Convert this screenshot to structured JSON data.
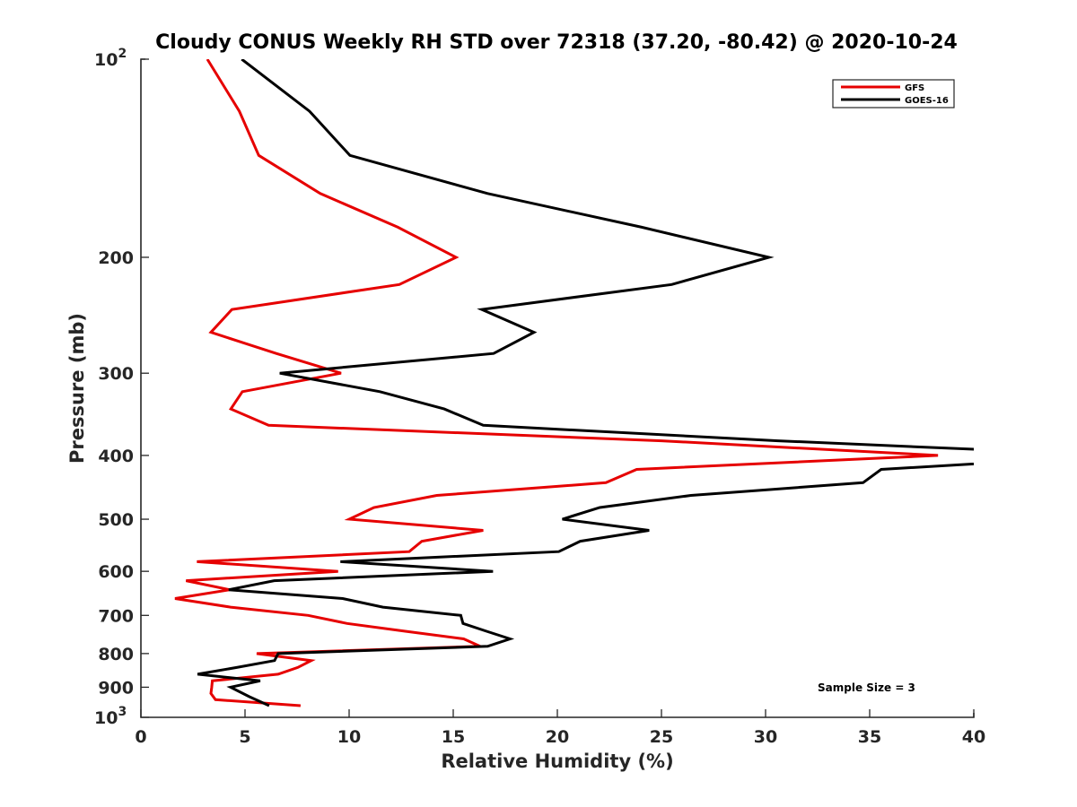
{
  "chart_data": {
    "type": "line",
    "title": "Cloudy CONUS Weekly RH STD over 72318 (37.20, -80.42) @ 2020-10-24",
    "xlabel": "Relative Humidity (%)",
    "ylabel": "Pressure (mb)",
    "xlim": [
      0,
      40
    ],
    "ylim": [
      100,
      1000
    ],
    "yscale": "log",
    "yaxis_reversed": true,
    "grid": false,
    "x_ticks": [
      "0",
      "5",
      "10",
      "15",
      "20",
      "25",
      "30",
      "35",
      "40"
    ],
    "y_ticks": [
      {
        "value": 100,
        "label": "10",
        "sup": "2"
      },
      {
        "value": 200,
        "label": "200",
        "sup": ""
      },
      {
        "value": 300,
        "label": "300",
        "sup": ""
      },
      {
        "value": 400,
        "label": "400",
        "sup": ""
      },
      {
        "value": 500,
        "label": "500",
        "sup": ""
      },
      {
        "value": 600,
        "label": "600",
        "sup": ""
      },
      {
        "value": 700,
        "label": "700",
        "sup": ""
      },
      {
        "value": 800,
        "label": "800",
        "sup": ""
      },
      {
        "value": 900,
        "label": "900",
        "sup": ""
      },
      {
        "value": 1000,
        "label": "10",
        "sup": "3"
      }
    ],
    "legend": {
      "placement": "top-right",
      "entries": [
        {
          "name": "GFS",
          "color": "#e60000"
        },
        {
          "name": "GOES-16",
          "color": "#000000"
        }
      ]
    },
    "annotation": "Sample Size = 3",
    "series": [
      {
        "name": "GFS",
        "color": "#e60000",
        "points": [
          [
            3.19,
            100
          ],
          [
            4.73,
            120
          ],
          [
            5.66,
            140
          ],
          [
            8.61,
            160
          ],
          [
            12.34,
            180
          ],
          [
            15.14,
            200
          ],
          [
            12.41,
            220
          ],
          [
            4.37,
            240
          ],
          [
            3.36,
            260
          ],
          [
            6.5,
            280
          ],
          [
            9.61,
            300
          ],
          [
            4.87,
            320
          ],
          [
            4.32,
            340
          ],
          [
            6.13,
            360
          ],
          [
            25.0,
            380
          ],
          [
            38.28,
            400
          ],
          [
            23.81,
            420
          ],
          [
            22.33,
            440
          ],
          [
            14.21,
            460
          ],
          [
            11.19,
            480
          ],
          [
            10.01,
            500
          ],
          [
            16.44,
            520
          ],
          [
            13.49,
            540
          ],
          [
            12.89,
            560
          ],
          [
            2.69,
            580
          ],
          [
            9.47,
            600
          ],
          [
            2.17,
            620
          ],
          [
            4.27,
            640
          ],
          [
            1.64,
            660
          ],
          [
            4.3,
            680
          ],
          [
            8.03,
            700
          ],
          [
            9.9,
            720
          ],
          [
            12.7,
            740
          ],
          [
            15.5,
            760
          ],
          [
            16.29,
            780
          ],
          [
            5.56,
            800
          ],
          [
            8.18,
            820
          ],
          [
            7.53,
            840
          ],
          [
            6.59,
            860
          ],
          [
            3.43,
            880
          ],
          [
            3.4,
            900
          ],
          [
            3.36,
            920
          ],
          [
            3.58,
            940
          ],
          [
            7.67,
            960
          ]
        ]
      },
      {
        "name": "GOES-16",
        "color": "#000000",
        "points": [
          [
            4.84,
            100
          ],
          [
            8.1,
            120
          ],
          [
            10.04,
            140
          ],
          [
            16.65,
            160
          ],
          [
            24.05,
            180
          ],
          [
            30.16,
            200
          ],
          [
            25.49,
            220
          ],
          [
            16.37,
            240
          ],
          [
            18.88,
            260
          ],
          [
            16.94,
            280
          ],
          [
            6.67,
            300
          ],
          [
            11.48,
            320
          ],
          [
            14.57,
            340
          ],
          [
            16.44,
            360
          ],
          [
            30.6,
            380
          ],
          [
            46.8,
            400
          ],
          [
            35.55,
            420
          ],
          [
            34.68,
            440
          ],
          [
            26.42,
            460
          ],
          [
            22.04,
            480
          ],
          [
            20.24,
            500
          ],
          [
            24.41,
            520
          ],
          [
            21.1,
            540
          ],
          [
            20.07,
            560
          ],
          [
            9.58,
            580
          ],
          [
            16.91,
            600
          ],
          [
            6.4,
            620
          ],
          [
            4.22,
            640
          ],
          [
            9.69,
            660
          ],
          [
            11.62,
            680
          ],
          [
            15.36,
            700
          ],
          [
            15.47,
            720
          ],
          [
            16.6,
            740
          ],
          [
            17.73,
            760
          ],
          [
            16.65,
            780
          ],
          [
            6.59,
            800
          ],
          [
            6.42,
            820
          ],
          [
            4.6,
            840
          ],
          [
            2.72,
            860
          ],
          [
            5.73,
            880
          ],
          [
            4.3,
            900
          ],
          [
            5.2,
            930
          ],
          [
            6.16,
            960
          ]
        ]
      }
    ]
  }
}
